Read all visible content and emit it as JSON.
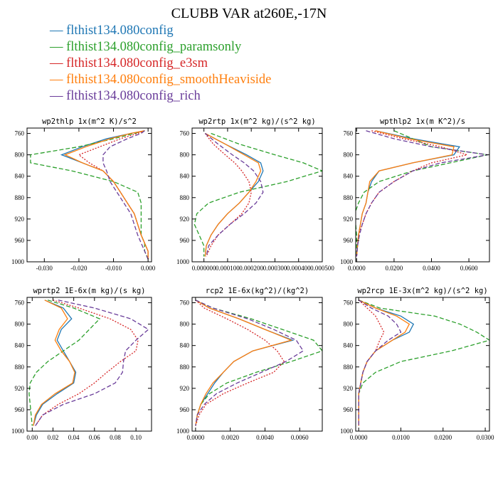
{
  "title": "CLUBB VAR at260E,-17N",
  "legend": [
    {
      "label": "— flthist134.080config",
      "color": "#1f77b4"
    },
    {
      "label": "— flthist134.080config_paramsonly",
      "color": "#2ca02c"
    },
    {
      "label": "— flthist134.080config_e3sm",
      "color": "#d62728"
    },
    {
      "label": "— flthist134.080config_smoothHeaviside",
      "color": "#ff7f0e"
    },
    {
      "label": "— flthist134.080config_rich",
      "color": "#6a3d9a"
    }
  ],
  "chart_data": [
    {
      "type": "line",
      "title": "wp2thlp  1x(m^2 K)/s^2",
      "xlim": [
        -0.035,
        0.001
      ],
      "ylim": [
        1000,
        750
      ],
      "xticks": [
        -0.03,
        -0.02,
        -0.01,
        0.0
      ],
      "xticklabels": [
        "-0.030",
        "-0.020",
        "-0.010",
        "0.000"
      ],
      "yticks": [
        760,
        800,
        840,
        880,
        920,
        960,
        1000
      ],
      "y": [
        755,
        760,
        770,
        785,
        800,
        815,
        830,
        850,
        870,
        890,
        910,
        930,
        950,
        965,
        980,
        995
      ],
      "series": [
        {
          "color": "#1f77b4",
          "dash": "",
          "values": [
            -0.001,
            -0.005,
            -0.012,
            -0.019,
            -0.025,
            -0.019,
            -0.013,
            -0.01,
            -0.008,
            -0.006,
            -0.004,
            -0.003,
            -0.002,
            -0.001,
            0.0,
            0.0
          ]
        },
        {
          "color": "#2ca02c",
          "dash": "6,3",
          "values": [
            -0.001,
            -0.004,
            -0.01,
            -0.02,
            -0.034,
            -0.034,
            -0.022,
            -0.01,
            -0.003,
            -0.002,
            -0.002,
            -0.002,
            -0.002,
            -0.001,
            -0.001,
            0.0
          ]
        },
        {
          "color": "#d62728",
          "dash": "2,2",
          "values": [
            -0.001,
            -0.003,
            -0.008,
            -0.014,
            -0.02,
            -0.017,
            -0.013,
            -0.01,
            -0.008,
            -0.006,
            -0.004,
            -0.003,
            -0.002,
            -0.001,
            0.0,
            0.0
          ]
        },
        {
          "color": "#ff7f0e",
          "dash": "",
          "values": [
            -0.001,
            -0.005,
            -0.011,
            -0.018,
            -0.024,
            -0.019,
            -0.013,
            -0.01,
            -0.008,
            -0.006,
            -0.004,
            -0.003,
            -0.002,
            -0.001,
            0.0,
            0.0
          ]
        },
        {
          "color": "#6a3d9a",
          "dash": "6,3",
          "values": [
            -0.001,
            -0.002,
            -0.006,
            -0.011,
            -0.013,
            -0.013,
            -0.012,
            -0.011,
            -0.009,
            -0.007,
            -0.005,
            -0.004,
            -0.003,
            -0.002,
            -0.001,
            0.0
          ]
        }
      ]
    },
    {
      "type": "line",
      "title": "wp2rtp  1x(m^2 kg)/(s^2 kg)",
      "xlim": [
        -5e-05,
        0.0005
      ],
      "ylim": [
        1000,
        750
      ],
      "xticks": [
        0.0,
        0.0001,
        0.0002,
        0.0003,
        0.0004,
        0.0005
      ],
      "xticklabels": [
        "0.000000",
        "0.000100",
        "0.000200",
        "0.000300",
        "0.000400",
        "0.000500"
      ],
      "yticks": [
        760,
        800,
        840,
        880,
        920,
        960,
        1000
      ],
      "y": [
        760,
        780,
        800,
        815,
        830,
        850,
        870,
        890,
        910,
        930,
        950,
        970,
        990
      ],
      "series": [
        {
          "color": "#1f77b4",
          "dash": "",
          "values": [
            5e-06,
            9e-05,
            0.00018,
            0.00024,
            0.00025,
            0.00023,
            0.00019,
            0.00015,
            0.0001,
            6e-05,
            3e-05,
            1e-05,
            5e-06
          ]
        },
        {
          "color": "#2ca02c",
          "dash": "6,3",
          "values": [
            3e-05,
            0.00015,
            0.0003,
            0.00042,
            0.0005,
            0.00035,
            0.00015,
            2e-05,
            -3e-05,
            -4e-05,
            -2e-05,
            0.0,
            0.0
          ]
        },
        {
          "color": "#d62728",
          "dash": "2,2",
          "values": [
            5e-06,
            4e-05,
            9e-05,
            0.00013,
            0.00016,
            0.00019,
            0.0002,
            0.00019,
            0.00016,
            0.00011,
            6e-05,
            3e-05,
            1e-05
          ]
        },
        {
          "color": "#ff7f0e",
          "dash": "",
          "values": [
            5e-06,
            9e-05,
            0.00017,
            0.00023,
            0.00024,
            0.00022,
            0.00019,
            0.00015,
            0.0001,
            6e-05,
            3e-05,
            1e-05,
            5e-06
          ]
        },
        {
          "color": "#6a3d9a",
          "dash": "6,3",
          "values": [
            5e-06,
            6e-05,
            0.00012,
            0.00017,
            0.00021,
            0.00024,
            0.00025,
            0.00022,
            0.00017,
            0.00011,
            6e-05,
            2e-05,
            1e-05
          ]
        }
      ]
    },
    {
      "type": "line",
      "title": "wpthlp2  1x(m K^2)/s",
      "xlim": [
        -0.0005,
        0.071
      ],
      "ylim": [
        1000,
        750
      ],
      "xticks": [
        0.0,
        0.02,
        0.04,
        0.06
      ],
      "xticklabels": [
        "0.0000",
        "0.0200",
        "0.0400",
        "0.0600"
      ],
      "yticks": [
        760,
        800,
        840,
        880,
        920,
        960,
        1000
      ],
      "y": [
        755,
        770,
        785,
        800,
        815,
        830,
        850,
        870,
        890,
        910,
        930,
        950,
        970,
        990
      ],
      "series": [
        {
          "color": "#1f77b4",
          "dash": "",
          "values": [
            0.01,
            0.03,
            0.055,
            0.052,
            0.03,
            0.012,
            0.008,
            0.006,
            0.005,
            0.003,
            0.002,
            0.001,
            0.0005,
            0.0
          ]
        },
        {
          "color": "#2ca02c",
          "dash": "6,3",
          "values": [
            0.02,
            0.03,
            0.04,
            0.07,
            0.05,
            0.03,
            0.012,
            0.004,
            0.001,
            -0.001,
            -0.0005,
            0.0,
            0.0,
            0.0
          ]
        },
        {
          "color": "#d62728",
          "dash": "2,2",
          "values": [
            0.008,
            0.025,
            0.045,
            0.059,
            0.04,
            0.03,
            0.02,
            0.012,
            0.008,
            0.005,
            0.003,
            0.001,
            0.0005,
            0.0
          ]
        },
        {
          "color": "#ff7f0e",
          "dash": "",
          "values": [
            0.01,
            0.028,
            0.052,
            0.051,
            0.03,
            0.012,
            0.007,
            0.006,
            0.005,
            0.003,
            0.002,
            0.001,
            0.0005,
            0.0
          ]
        },
        {
          "color": "#6a3d9a",
          "dash": "6,3",
          "values": [
            0.005,
            0.02,
            0.04,
            0.07,
            0.045,
            0.03,
            0.02,
            0.012,
            0.008,
            0.005,
            0.003,
            0.0015,
            0.0005,
            0.0
          ]
        }
      ]
    },
    {
      "type": "line",
      "title": "wprtp2  1E-6x(m kg)/(s kg)",
      "xlim": [
        -0.005,
        0.115
      ],
      "ylim": [
        1000,
        750
      ],
      "xticks": [
        0.0,
        0.02,
        0.04,
        0.06,
        0.08,
        0.1
      ],
      "xticklabels": [
        "0.00",
        "0.02",
        "0.04",
        "0.06",
        "0.08",
        "0.10"
      ],
      "yticks": [
        760,
        800,
        840,
        880,
        920,
        960,
        1000
      ],
      "y": [
        755,
        770,
        790,
        810,
        830,
        850,
        870,
        890,
        910,
        930,
        950,
        970,
        990
      ],
      "series": [
        {
          "color": "#1f77b4",
          "dash": "",
          "values": [
            0.012,
            0.03,
            0.038,
            0.028,
            0.024,
            0.03,
            0.036,
            0.042,
            0.04,
            0.024,
            0.01,
            0.004,
            0.001
          ]
        },
        {
          "color": "#2ca02c",
          "dash": "6,3",
          "values": [
            0.015,
            0.04,
            0.065,
            0.055,
            0.045,
            0.03,
            0.015,
            0.004,
            -0.002,
            -0.003,
            -0.002,
            -0.001,
            0.0
          ]
        },
        {
          "color": "#d62728",
          "dash": "2,2",
          "values": [
            0.02,
            0.045,
            0.075,
            0.095,
            0.102,
            0.1,
            0.085,
            0.072,
            0.06,
            0.045,
            0.025,
            0.01,
            0.003
          ]
        },
        {
          "color": "#ff7f0e",
          "dash": "",
          "values": [
            0.012,
            0.028,
            0.034,
            0.026,
            0.022,
            0.028,
            0.036,
            0.041,
            0.039,
            0.022,
            0.009,
            0.003,
            0.001
          ]
        },
        {
          "color": "#6a3d9a",
          "dash": "6,3",
          "values": [
            0.025,
            0.06,
            0.095,
            0.112,
            0.1,
            0.09,
            0.088,
            0.087,
            0.08,
            0.06,
            0.03,
            0.01,
            0.003
          ]
        }
      ]
    },
    {
      "type": "line",
      "title": "rcp2  1E-6x(kg^2)/(kg^2)",
      "xlim": [
        -0.0002,
        0.0073
      ],
      "ylim": [
        1000,
        750
      ],
      "xticks": [
        0.0,
        0.002,
        0.004,
        0.006
      ],
      "xticklabels": [
        "0.0000",
        "0.0020",
        "0.0040",
        "0.0060"
      ],
      "yticks": [
        760,
        800,
        840,
        880,
        920,
        960,
        1000
      ],
      "y": [
        755,
        770,
        790,
        810,
        830,
        850,
        870,
        890,
        910,
        930,
        950,
        970,
        990
      ],
      "series": [
        {
          "color": "#1f77b4",
          "dash": "",
          "values": [
            0.0,
            0.0008,
            0.0025,
            0.004,
            0.0056,
            0.0033,
            0.0022,
            0.0016,
            0.0011,
            0.0007,
            0.0003,
            0.0001,
            0.0
          ]
        },
        {
          "color": "#2ca02c",
          "dash": "6,3",
          "values": [
            0.0,
            0.001,
            0.0032,
            0.005,
            0.0068,
            0.0073,
            0.0055,
            0.0035,
            0.0018,
            0.0008,
            0.0003,
            0.0001,
            0.0
          ]
        },
        {
          "color": "#d62728",
          "dash": "2,2",
          "values": [
            0.0,
            0.0005,
            0.0018,
            0.003,
            0.004,
            0.0047,
            0.0051,
            0.0045,
            0.003,
            0.0016,
            0.0006,
            0.0002,
            0.0
          ]
        },
        {
          "color": "#ff7f0e",
          "dash": "",
          "values": [
            0.0,
            0.0008,
            0.0025,
            0.004,
            0.0055,
            0.0033,
            0.0022,
            0.0016,
            0.001,
            0.0006,
            0.0003,
            0.0001,
            0.0
          ]
        },
        {
          "color": "#6a3d9a",
          "dash": "6,3",
          "values": [
            0.0,
            0.001,
            0.003,
            0.0045,
            0.0058,
            0.0062,
            0.0052,
            0.0038,
            0.0024,
            0.0012,
            0.0005,
            0.0001,
            0.0
          ]
        }
      ]
    },
    {
      "type": "line",
      "title": "wp2rcp  1E-3x(m^2 kg)/(s^2 kg)",
      "xlim": [
        -0.0007,
        0.031
      ],
      "ylim": [
        1000,
        750
      ],
      "xticks": [
        0.0,
        0.01,
        0.02,
        0.03
      ],
      "xticklabels": [
        "0.0000",
        "0.0100",
        "0.0200",
        "0.0300"
      ],
      "yticks": [
        760,
        800,
        840,
        880,
        920,
        960,
        1000
      ],
      "y": [
        755,
        770,
        785,
        800,
        815,
        830,
        850,
        870,
        890,
        910,
        930,
        950,
        970,
        990
      ],
      "series": [
        {
          "color": "#1f77b4",
          "dash": "",
          "values": [
            0.0,
            0.004,
            0.01,
            0.013,
            0.012,
            0.008,
            0.004,
            0.002,
            0.001,
            0.0005,
            0.0,
            0.0,
            0.0,
            0.0
          ]
        },
        {
          "color": "#2ca02c",
          "dash": "6,3",
          "values": [
            0.0,
            0.005,
            0.018,
            0.024,
            0.028,
            0.031,
            0.022,
            0.01,
            0.004,
            0.001,
            0.0,
            0.0,
            0.0,
            0.0
          ]
        },
        {
          "color": "#d62728",
          "dash": "2,2",
          "values": [
            0.0,
            0.002,
            0.004,
            0.005,
            0.006,
            0.005,
            0.004,
            0.002,
            0.001,
            0.0005,
            0.0,
            0.0,
            0.0,
            0.0
          ]
        },
        {
          "color": "#ff7f0e",
          "dash": "",
          "values": [
            0.0,
            0.004,
            0.009,
            0.012,
            0.011,
            0.008,
            0.004,
            0.002,
            0.001,
            0.0005,
            0.0,
            0.0,
            0.0,
            0.0
          ]
        },
        {
          "color": "#6a3d9a",
          "dash": "6,3",
          "values": [
            0.0,
            0.003,
            0.007,
            0.009,
            0.01,
            0.007,
            0.004,
            0.002,
            0.001,
            0.0005,
            0.0,
            0.0,
            0.0,
            0.0
          ]
        }
      ]
    }
  ]
}
